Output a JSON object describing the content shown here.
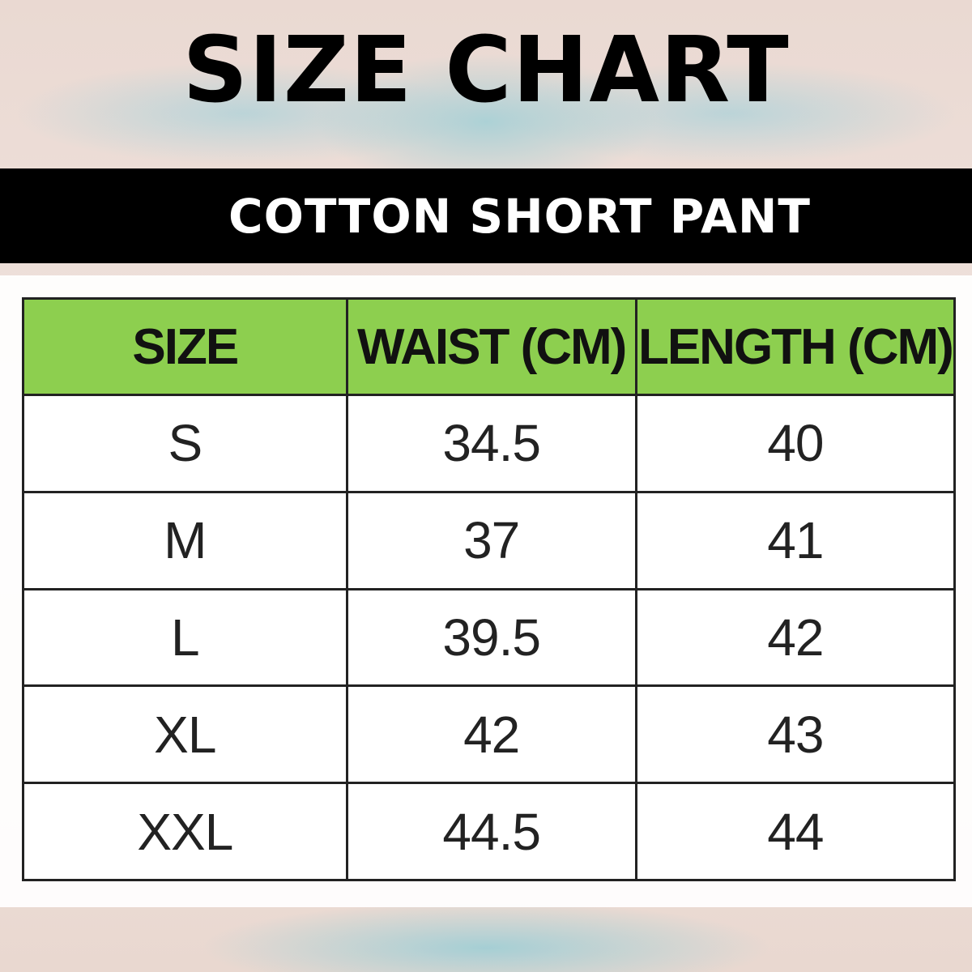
{
  "title": "SIZE CHART",
  "subtitle": "COTTON SHORT PANT",
  "colors": {
    "header_green": "#8dcf4f",
    "band": "#000000"
  },
  "table": {
    "headers": [
      "SIZE",
      "WAIST (CM)",
      "LENGTH (CM)"
    ],
    "rows": [
      [
        "S",
        "34.5",
        "40"
      ],
      [
        "M",
        "37",
        "41"
      ],
      [
        "L",
        "39.5",
        "42"
      ],
      [
        "XL",
        "42",
        "43"
      ],
      [
        "XXL",
        "44.5",
        "44"
      ]
    ]
  }
}
